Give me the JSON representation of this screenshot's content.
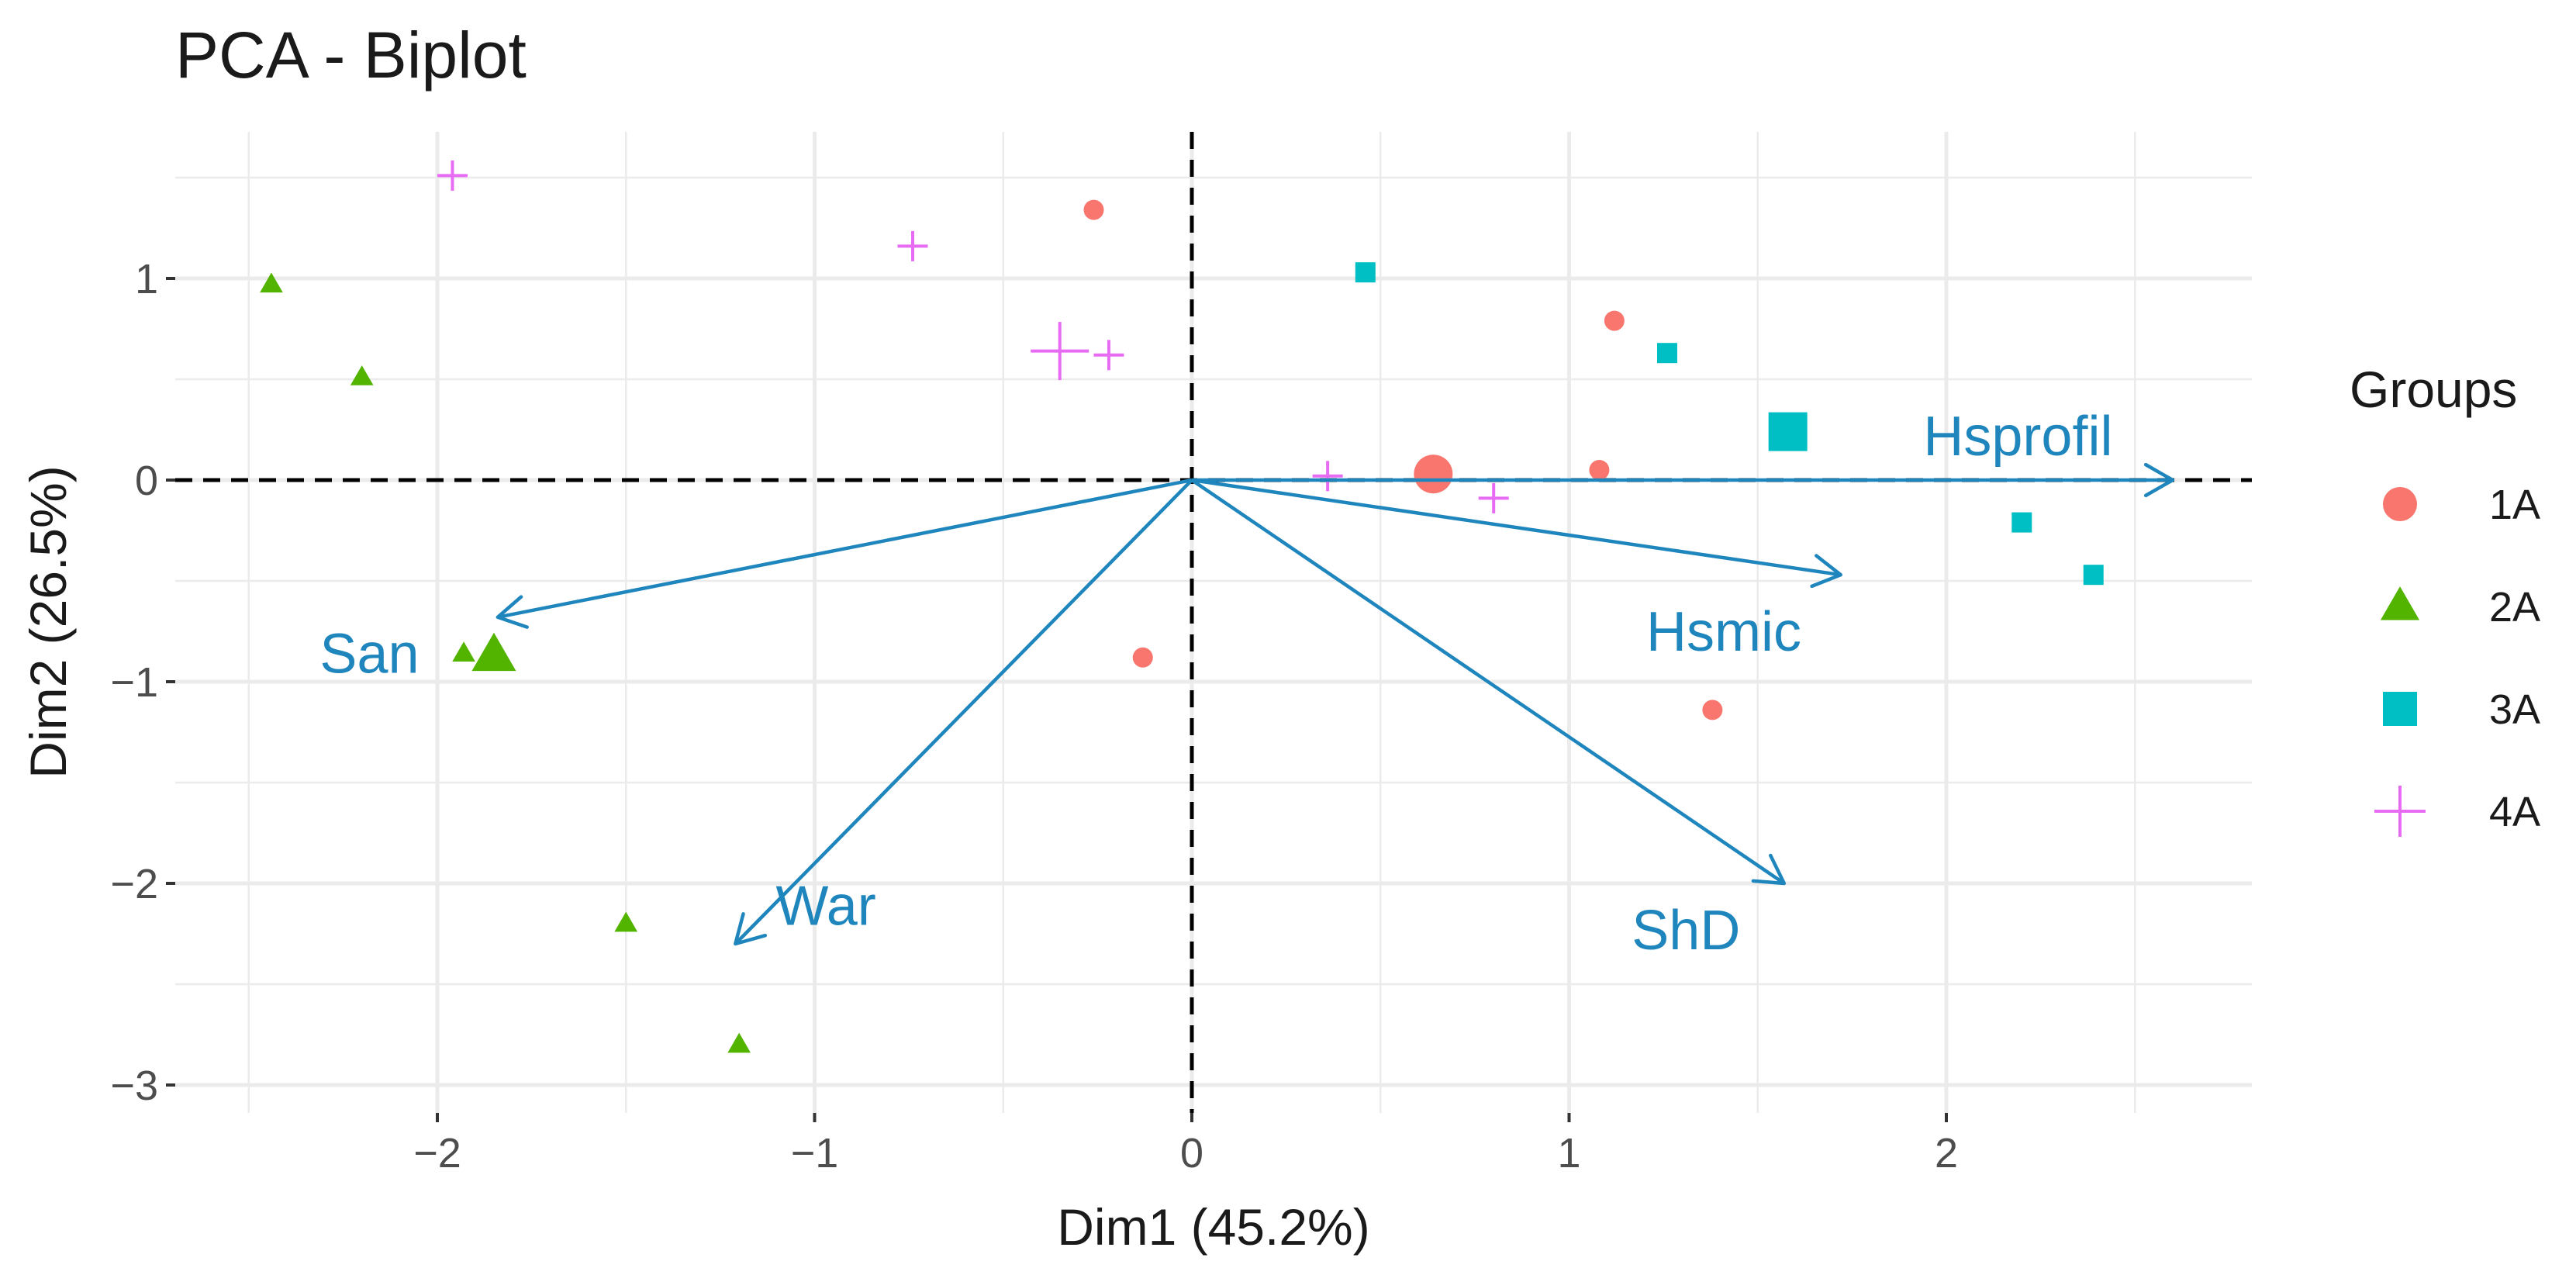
{
  "chart_data": {
    "type": "scatter",
    "subtype": "pca-biplot",
    "title": "PCA - Biplot",
    "xlabel": "Dim1 (45.2%)",
    "ylabel": "Dim2 (26.5%)",
    "xlim": [
      -2.5,
      2.8
    ],
    "ylim": [
      -3.1,
      1.65
    ],
    "x_ticks": [
      -2,
      -1,
      0,
      1,
      2
    ],
    "y_ticks": [
      1,
      0,
      -1,
      -2,
      -3
    ],
    "x_tick_labels": [
      "−2",
      "−1",
      "0",
      "1",
      "2"
    ],
    "y_tick_labels": [
      "1",
      "0",
      "−1",
      "−2",
      "−3"
    ],
    "grid": true,
    "zero_lines": "dashed",
    "legend": {
      "title": "Groups",
      "position": "right",
      "entries": [
        {
          "group": "1A",
          "label": "1A",
          "shape": "circle",
          "color": "#F8766D"
        },
        {
          "group": "2A",
          "label": "2A",
          "shape": "triangle",
          "color": "#53B400"
        },
        {
          "group": "3A",
          "label": "3A",
          "shape": "square",
          "color": "#00BFC4"
        },
        {
          "group": "4A",
          "label": "4A",
          "shape": "plus",
          "color": "#E76BF3"
        }
      ]
    },
    "series": [
      {
        "name": "1A",
        "shape": "circle",
        "color": "#F8766D",
        "points": [
          [
            -0.26,
            1.34
          ],
          [
            1.12,
            0.79
          ],
          [
            1.08,
            0.05
          ],
          [
            -0.13,
            -0.88
          ],
          [
            1.38,
            -1.14
          ]
        ],
        "centroid": [
          0.64,
          0.03
        ]
      },
      {
        "name": "2A",
        "shape": "triangle",
        "color": "#53B400",
        "points": [
          [
            -2.44,
            0.97
          ],
          [
            -2.2,
            0.51
          ],
          [
            -1.93,
            -0.86
          ],
          [
            -1.5,
            -2.2
          ],
          [
            -1.2,
            -2.8
          ]
        ],
        "centroid": [
          -1.85,
          -0.87
        ]
      },
      {
        "name": "3A",
        "shape": "square",
        "color": "#00BFC4",
        "points": [
          [
            0.46,
            1.03
          ],
          [
            1.26,
            0.63
          ],
          [
            2.2,
            -0.21
          ],
          [
            2.39,
            -0.47
          ]
        ],
        "centroid": [
          1.58,
          0.24
        ]
      },
      {
        "name": "4A",
        "shape": "plus",
        "color": "#E76BF3",
        "points": [
          [
            -1.96,
            1.51
          ],
          [
            -0.74,
            1.16
          ],
          [
            -0.22,
            0.62
          ],
          [
            0.36,
            0.02
          ],
          [
            0.8,
            -0.09
          ]
        ],
        "centroid": [
          -0.35,
          0.64
        ]
      }
    ],
    "variables": {
      "color": "#1F86BD",
      "arrows": [
        {
          "name": "Hsprofil",
          "x": 2.6,
          "y": 0.0,
          "label_at": [
            2.19,
            0.22
          ]
        },
        {
          "name": "Hsmic",
          "x": 1.72,
          "y": -0.47,
          "label_at": [
            1.41,
            -0.75
          ]
        },
        {
          "name": "ShD",
          "x": 1.57,
          "y": -2.0,
          "label_at": [
            1.31,
            -2.23
          ]
        },
        {
          "name": "War",
          "x": -1.21,
          "y": -2.3,
          "label_at": [
            -0.97,
            -2.11
          ]
        },
        {
          "name": "San",
          "x": -1.84,
          "y": -0.68,
          "label_at": [
            -2.18,
            -0.86
          ]
        }
      ]
    }
  }
}
